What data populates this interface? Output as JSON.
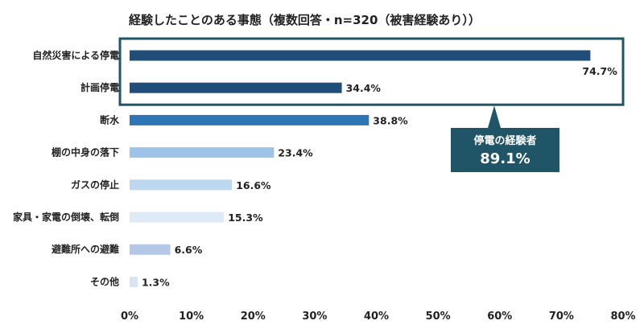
{
  "chart_data": {
    "type": "bar",
    "orientation": "horizontal",
    "title": "経験したことのある事態（複数回答・n=320（被害経験あり））",
    "categories": [
      "自然災害による停電",
      "計画停電",
      "断水",
      "棚の中身の落下",
      "ガスの停止",
      "家具・家電の倒壊、転倒",
      "避難所への避難",
      "その他"
    ],
    "values": [
      74.7,
      34.4,
      38.8,
      23.4,
      16.6,
      15.3,
      6.6,
      1.3
    ],
    "value_labels": [
      "74.7%",
      "34.4%",
      "38.8%",
      "23.4%",
      "16.6%",
      "15.3%",
      "6.6%",
      "1.3%"
    ],
    "bar_colors": [
      "#1f4e79",
      "#1f4e79",
      "#2e75b6",
      "#9dc3e6",
      "#bdd7ee",
      "#deebf7",
      "#b4c7e7",
      "#dae3f3"
    ],
    "xlim": [
      0,
      80
    ],
    "xticks": [
      0,
      10,
      20,
      30,
      40,
      50,
      60,
      70,
      80
    ],
    "xtick_labels": [
      "0%",
      "10%",
      "20%",
      "30%",
      "40%",
      "50%",
      "60%",
      "70%",
      "80%"
    ],
    "grid": false,
    "annotation": {
      "label": "停電の経験者",
      "value": "89.1%",
      "box_color": "#1f5566",
      "highlight_border_color": "#1f5566",
      "highlighted_categories": [
        "自然災害による停電",
        "計画停電"
      ]
    }
  }
}
